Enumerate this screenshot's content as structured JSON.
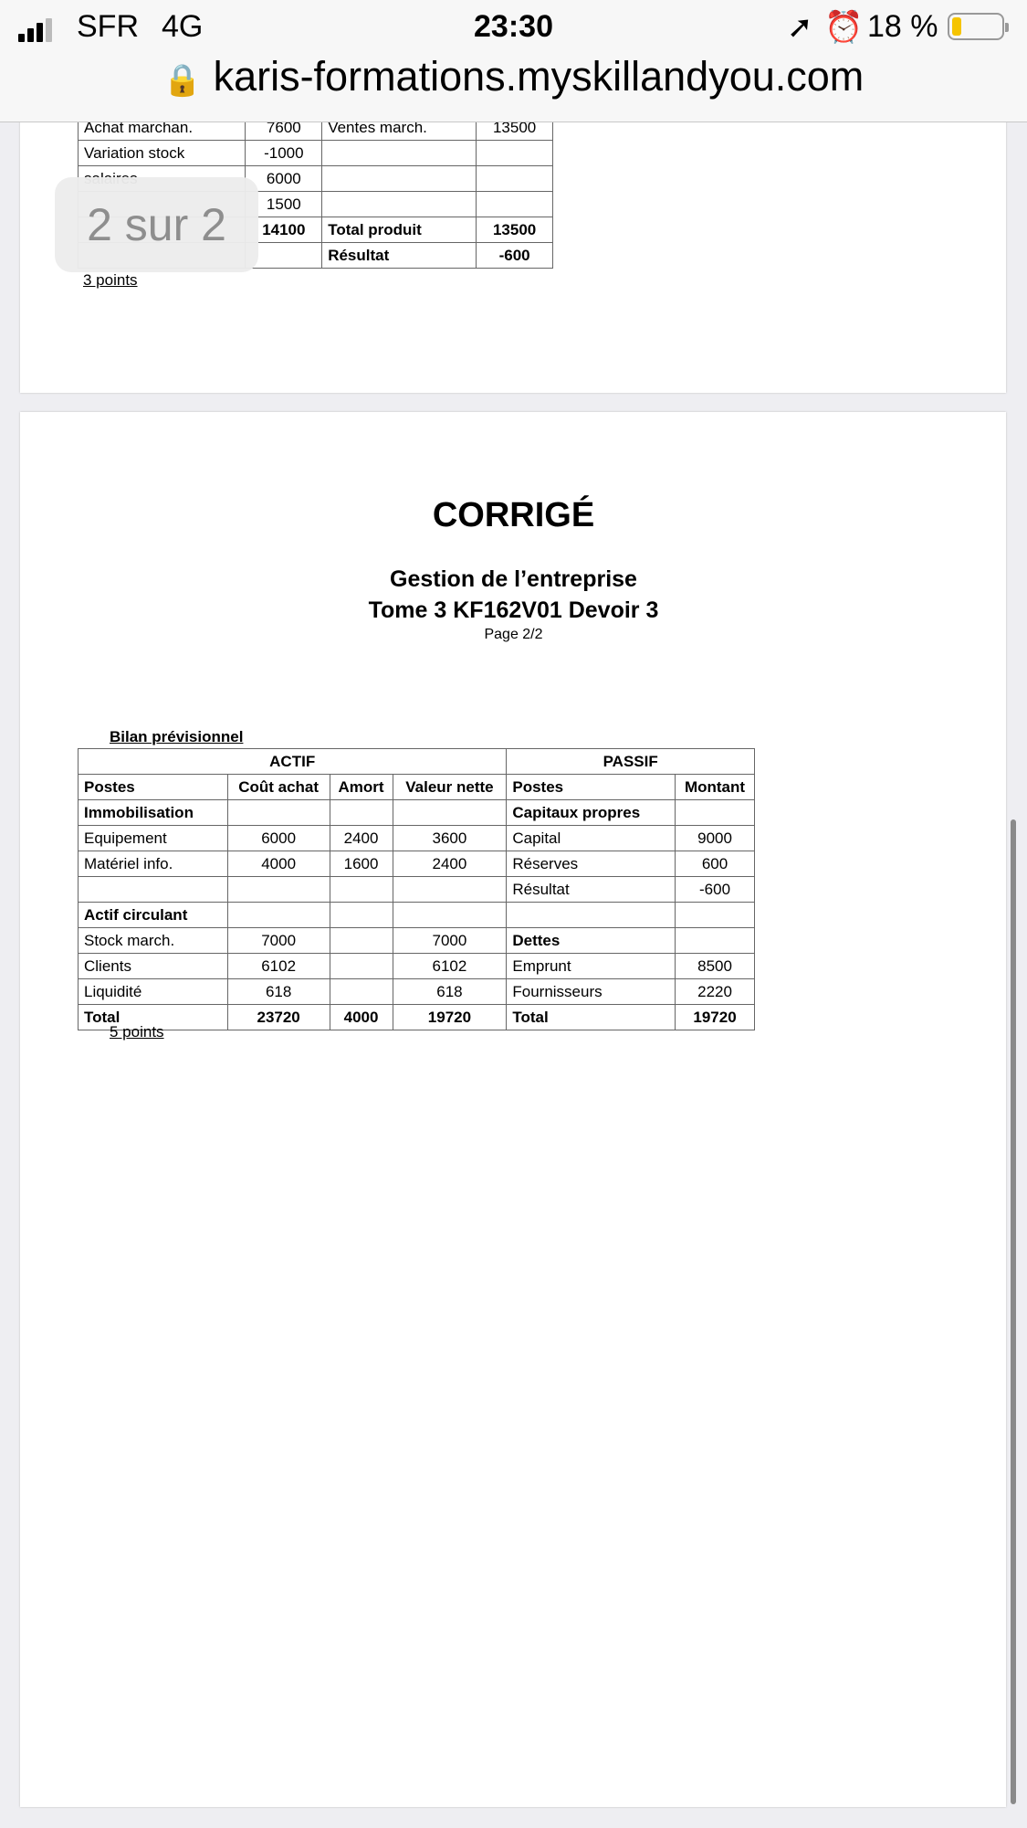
{
  "status_bar": {
    "carrier": "SFR",
    "network": "4G",
    "time": "23:30",
    "battery": "18 %",
    "url": "karis-formations.myskillandyou.com"
  },
  "page_indicator": "2 sur 2",
  "top_table": {
    "rows": [
      [
        "Achat marchan.",
        "7600",
        "Ventes march.",
        "13500"
      ],
      [
        "Variation stock",
        "-1000",
        "",
        ""
      ],
      [
        "salaires",
        "6000",
        "",
        ""
      ],
      [
        "",
        "1500",
        "",
        ""
      ],
      [
        "",
        "14100",
        "Total produit",
        "13500"
      ],
      [
        "",
        "",
        "Résultat",
        "-600"
      ]
    ],
    "points": "3 points"
  },
  "doc": {
    "title": "CORRIGÉ",
    "subtitle1": "Gestion de l’entreprise",
    "subtitle2": "Tome 3 KF162V01 Devoir 3",
    "page": "Page 2/2"
  },
  "bilan": {
    "title": "Bilan prévisionnel",
    "actif": "ACTIF",
    "passif": "PASSIF",
    "headers": [
      "Postes",
      "Coût achat",
      "Amort",
      "Valeur nette",
      "Postes",
      "Montant"
    ],
    "rows": [
      [
        "Immobilisation",
        "",
        "",
        "",
        "Capitaux propres",
        ""
      ],
      [
        "Equipement",
        "6000",
        "2400",
        "3600",
        "Capital",
        "9000"
      ],
      [
        "Matériel info.",
        "4000",
        "1600",
        "2400",
        "Réserves",
        "600"
      ],
      [
        "",
        "",
        "",
        "",
        "Résultat",
        "-600"
      ],
      [
        "Actif circulant",
        "",
        "",
        "",
        "",
        ""
      ],
      [
        "Stock march.",
        "7000",
        "",
        "7000",
        "Dettes",
        ""
      ],
      [
        "Clients",
        "6102",
        "",
        "6102",
        "Emprunt",
        "8500"
      ],
      [
        "Liquidité",
        "618",
        "",
        "618",
        "Fournisseurs",
        "2220"
      ],
      [
        "Total",
        "23720",
        "4000",
        "19720",
        "Total",
        "19720"
      ]
    ],
    "points": "5 points"
  }
}
